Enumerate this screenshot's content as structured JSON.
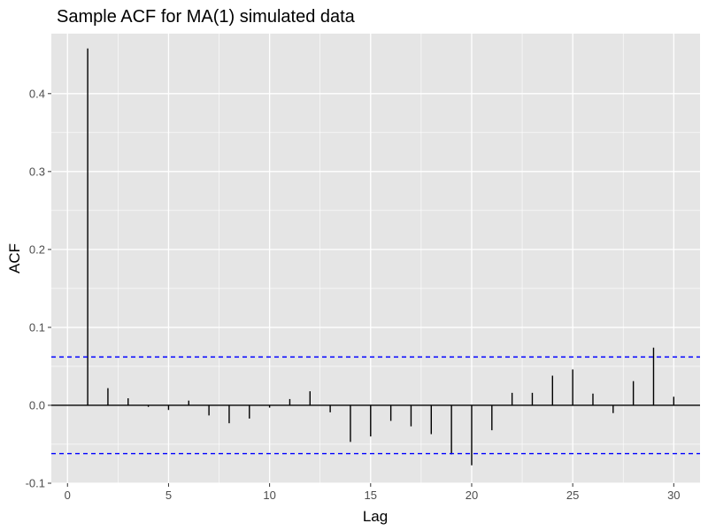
{
  "chart_data": {
    "type": "bar",
    "title": "Sample ACF for MA(1) simulated data",
    "xlabel": "Lag",
    "ylabel": "ACF",
    "xlim": [
      -0.8,
      31.3
    ],
    "ylim": [
      -0.1,
      0.477
    ],
    "x_ticks": [
      0,
      5,
      10,
      15,
      20,
      25,
      30
    ],
    "y_ticks": [
      -0.1,
      0.0,
      0.1,
      0.2,
      0.3,
      0.4
    ],
    "x_tick_labels": [
      "0",
      "5",
      "10",
      "15",
      "20",
      "25",
      "30"
    ],
    "y_tick_labels": [
      "-0.1",
      "0.0",
      "0.1",
      "0.2",
      "0.3",
      "0.4"
    ],
    "grid": true,
    "lags": [
      1,
      2,
      3,
      4,
      5,
      6,
      7,
      8,
      9,
      10,
      11,
      12,
      13,
      14,
      15,
      16,
      17,
      18,
      19,
      20,
      21,
      22,
      23,
      24,
      25,
      26,
      27,
      28,
      29,
      30
    ],
    "values": [
      0.458,
      0.022,
      0.009,
      -0.002,
      -0.006,
      0.006,
      -0.013,
      -0.023,
      -0.017,
      -0.003,
      0.008,
      0.018,
      -0.009,
      -0.047,
      -0.04,
      -0.02,
      -0.027,
      -0.037,
      -0.063,
      -0.077,
      -0.032,
      0.016,
      0.016,
      0.038,
      0.046,
      0.015,
      -0.01,
      0.031,
      0.074,
      0.011
    ],
    "confidence_bounds": [
      0.062,
      -0.062
    ],
    "colors": {
      "panel": "#e5e5e5",
      "grid": "#ffffff",
      "bars": "#000000",
      "bounds": "#0000ff",
      "zero_line": "#000000"
    }
  }
}
